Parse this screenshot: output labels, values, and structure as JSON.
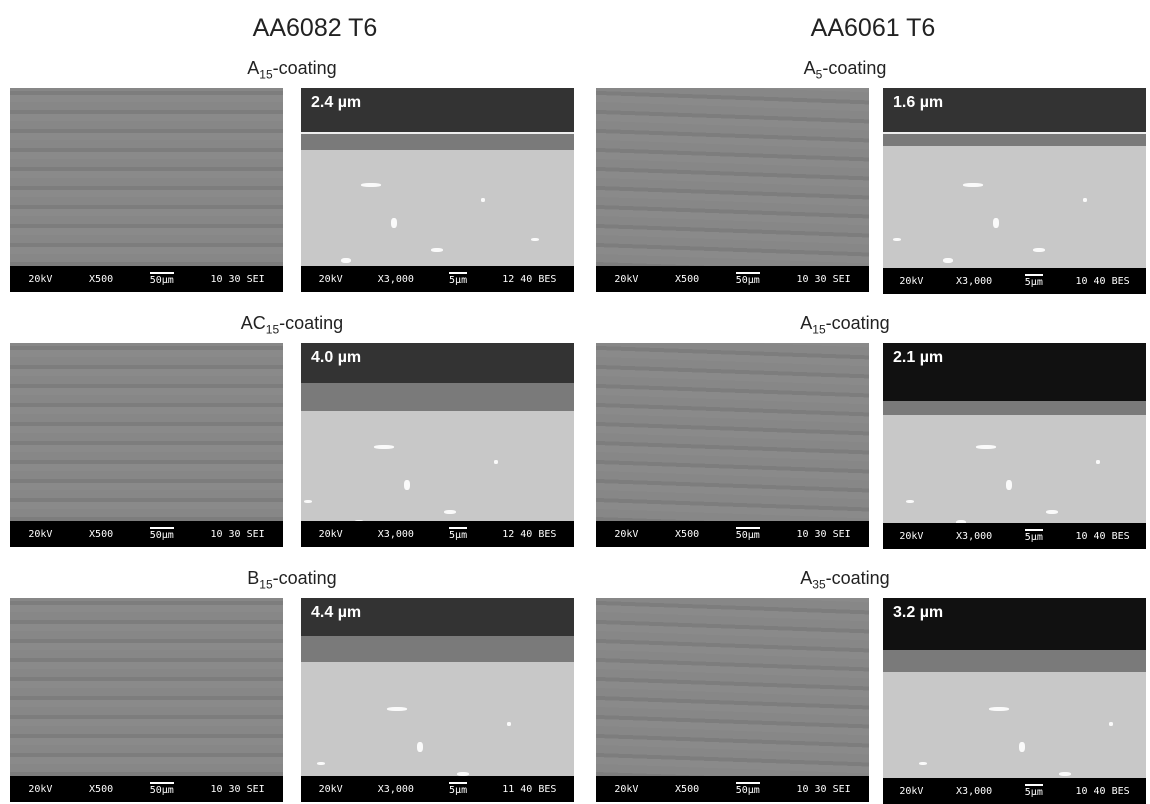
{
  "columns": [
    {
      "title": "AA6082 T6",
      "rows": [
        {
          "label": {
            "base": "A",
            "sub": "15",
            "rest": "-coating"
          },
          "surface_bar": [
            "20kV",
            "X500",
            "50µm",
            "10 30 SEI"
          ],
          "thickness": "2.4  µm",
          "section_bar": [
            "20kV",
            "X3,000",
            "5µm",
            "12 40 BES"
          ]
        },
        {
          "label": {
            "base": "AC",
            "sub": "15",
            "rest": "-coating"
          },
          "surface_bar": [
            "20kV",
            "X500",
            "50µm",
            "10 30 SEI"
          ],
          "thickness": "4.0 µm",
          "section_bar": [
            "20kV",
            "X3,000",
            "5µm",
            "12 40 BES"
          ]
        },
        {
          "label": {
            "base": "B",
            "sub": "15",
            "rest": "-coating"
          },
          "surface_bar": [
            "20kV",
            "X500",
            "50µm",
            "10 30 SEI"
          ],
          "thickness": "4.4 µm",
          "section_bar": [
            "20kV",
            "X3,000",
            "5µm",
            "11 40 BES"
          ]
        }
      ]
    },
    {
      "title": "AA6061 T6",
      "rows": [
        {
          "label": {
            "base": "A",
            "sub": "5",
            "rest": "-coating"
          },
          "surface_bar": [
            "20kV",
            "X500",
            "50µm",
            "10 30 SEI"
          ],
          "thickness": "1.6 µm",
          "section_bar": [
            "20kV",
            "X3,000",
            "5µm",
            "10 40 BES"
          ]
        },
        {
          "label": {
            "base": "A",
            "sub": "15",
            "rest": "-coating"
          },
          "surface_bar": [
            "20kV",
            "X500",
            "50µm",
            "10 30 SEI"
          ],
          "thickness": "2.1 µm",
          "section_bar": [
            "20kV",
            "X3,000",
            "5µm",
            "10 40 BES"
          ]
        },
        {
          "label": {
            "base": "A",
            "sub": "35",
            "rest": "-coating"
          },
          "surface_bar": [
            "20kV",
            "X500",
            "50µm",
            "10 30 SEI"
          ],
          "thickness": "3.2 µm",
          "section_bar": [
            "20kV",
            "X3,000",
            "5µm",
            "10 40 BES"
          ]
        }
      ]
    }
  ]
}
